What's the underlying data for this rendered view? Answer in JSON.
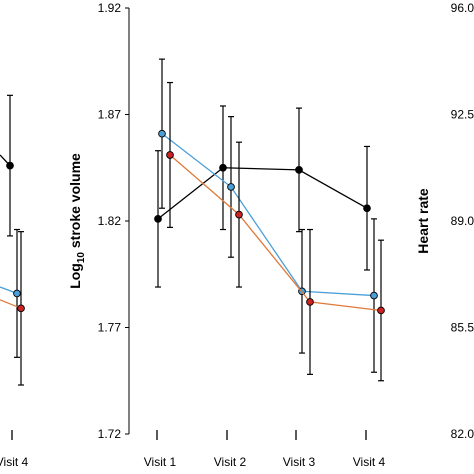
{
  "chart_data": [
    {
      "type": "line",
      "visible": "right portion of a cropped left panel",
      "categories": [
        "Visit 4"
      ],
      "series": [
        {
          "color": "#000000",
          "values": [
            1.846
          ],
          "err": [
            0.033
          ]
        },
        {
          "color": "#4a9fd8",
          "values": [
            1.786
          ],
          "err": [
            0.03
          ]
        },
        {
          "color": "#e07a3a",
          "marker_color": "#cc2222",
          "values": [
            1.779
          ],
          "err": [
            0.036
          ]
        }
      ]
    },
    {
      "type": "line",
      "categories": [
        "Visit 1",
        "Visit 2",
        "Visit 3",
        "Visit 4"
      ],
      "ylabel_main": "Log",
      "ylabel_sub": "10",
      "ylabel_rest": " stroke volume",
      "ylim": [
        1.72,
        1.92
      ],
      "yticks": [
        "1.92",
        "1.87",
        "1.82",
        "1.77",
        "1.72"
      ],
      "series": [
        {
          "color": "#000000",
          "values": [
            1.821,
            1.845,
            1.844,
            1.826
          ],
          "err": [
            0.032,
            0.029,
            0.029,
            0.029
          ]
        },
        {
          "color": "#4a9fd8",
          "values": [
            1.861,
            1.836,
            1.787,
            1.785
          ],
          "err": [
            0.035,
            0.033,
            0.029,
            0.036
          ]
        },
        {
          "color": "#e07a3a",
          "marker_color": "#cc2222",
          "values": [
            1.851,
            1.823,
            1.782,
            1.778
          ],
          "err": [
            0.034,
            0.034,
            0.034,
            0.033
          ]
        }
      ]
    },
    {
      "type": "axis",
      "ylabel": "Heart rate",
      "ylim": [
        82.0,
        96.0
      ],
      "yticks": [
        "96.0",
        "92.5",
        "89.0",
        "85.5",
        "82.0"
      ]
    }
  ]
}
